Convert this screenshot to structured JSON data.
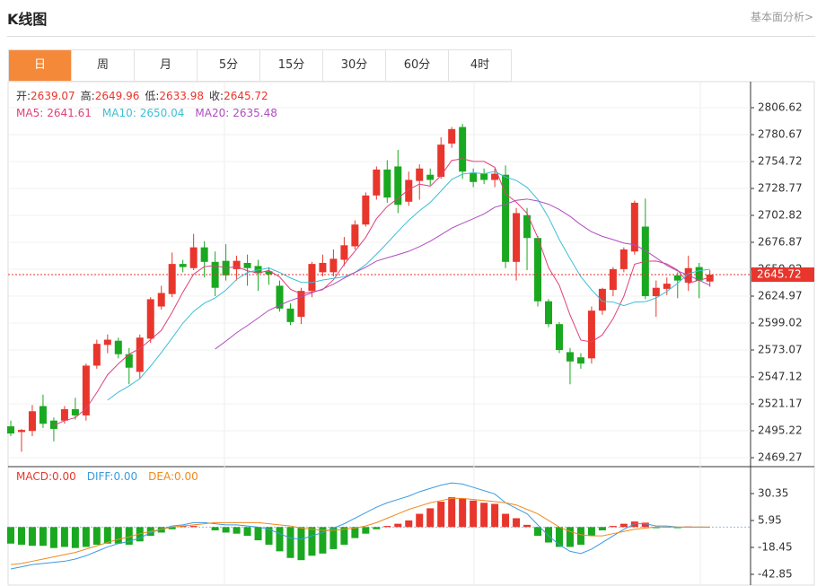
{
  "header": {
    "title": "K线图",
    "link": "基本面分析>"
  },
  "tabs": [
    "日",
    "周",
    "月",
    "5分",
    "15分",
    "30分",
    "60分",
    "4时"
  ],
  "chart_data": [
    {
      "type": "candlestick",
      "ohlc_labels": [
        "开:",
        "高:",
        "低:",
        "收:"
      ],
      "open": [
        2499.5,
        2494,
        2495,
        2519,
        2505,
        2505,
        2516,
        2510,
        2558,
        2578,
        2582,
        2569,
        2552,
        2584,
        2615,
        2627,
        2656,
        2652,
        2672,
        2658,
        2659,
        2651,
        2657,
        2654,
        2649,
        2635,
        2613,
        2605,
        2630,
        2648,
        2648,
        2660,
        2673,
        2694,
        2722,
        2747,
        2750,
        2716,
        2736,
        2742,
        2740,
        2772,
        2788,
        2744,
        2743,
        2737,
        2742,
        2658,
        2703,
        2681,
        2620,
        2598,
        2571,
        2566,
        2565,
        2611,
        2631,
        2651,
        2668,
        2692,
        2625,
        2632,
        2645,
        2638,
        2653,
        2639.07
      ],
      "high": [
        2505,
        2497,
        2520,
        2530,
        2508,
        2519,
        2527,
        2560,
        2583,
        2588,
        2585,
        2575,
        2588,
        2624,
        2635,
        2667,
        2660,
        2685,
        2678,
        2668,
        2675,
        2664,
        2665,
        2660,
        2653,
        2640,
        2618,
        2633,
        2658,
        2665,
        2670,
        2682,
        2698,
        2725,
        2750,
        2756,
        2766,
        2745,
        2752,
        2748,
        2778,
        2788,
        2791,
        2748,
        2748,
        2748,
        2751,
        2710,
        2710,
        2683,
        2622,
        2600,
        2575,
        2570,
        2615,
        2633,
        2653,
        2672,
        2717,
        2719,
        2640,
        2643,
        2648,
        2664,
        2657,
        2649.96
      ],
      "low": [
        2490,
        2475,
        2490,
        2498,
        2485,
        2502,
        2506,
        2505,
        2555,
        2570,
        2565,
        2540,
        2545,
        2580,
        2612,
        2624,
        2648,
        2650,
        2643,
        2625,
        2640,
        2640,
        2635,
        2630,
        2636,
        2610,
        2597,
        2598,
        2624,
        2644,
        2644,
        2654,
        2670,
        2692,
        2718,
        2715,
        2705,
        2712,
        2718,
        2732,
        2738,
        2768,
        2738,
        2730,
        2733,
        2730,
        2652,
        2640,
        2650,
        2615,
        2595,
        2570,
        2540,
        2555,
        2560,
        2607,
        2625,
        2648,
        2665,
        2622,
        2605,
        2626,
        2623,
        2630,
        2623,
        2633.98
      ],
      "close": [
        2492.6,
        2496,
        2514,
        2502,
        2497,
        2516,
        2510,
        2558,
        2579,
        2583,
        2569,
        2556,
        2585,
        2622,
        2628,
        2656,
        2653,
        2672,
        2658,
        2633,
        2645,
        2659,
        2652,
        2647,
        2646,
        2613,
        2600,
        2630,
        2656,
        2657,
        2661,
        2674,
        2694,
        2722,
        2747,
        2720,
        2713,
        2737,
        2748,
        2737,
        2771,
        2786,
        2745,
        2735,
        2737,
        2743,
        2658,
        2705,
        2681,
        2620,
        2598,
        2573,
        2562,
        2560,
        2611,
        2632,
        2651,
        2670,
        2715,
        2625,
        2633,
        2637,
        2640,
        2652,
        2640,
        2645.72
      ],
      "up_color": "#e8362c",
      "down_color": "#1aa820",
      "ma": [
        {
          "name": "MA5:",
          "value": 2641.61,
          "color": "#e0407a"
        },
        {
          "name": "MA10:",
          "value": 2650.04,
          "color": "#3cbfd6"
        },
        {
          "name": "MA20:",
          "value": 2635.48,
          "color": "#b04cc0"
        }
      ],
      "ylim": [
        2462.35,
        2829.98
      ],
      "yticks": [
        2469.27,
        2495.22,
        2521.17,
        2547.12,
        2573.07,
        2599.02,
        2624.97,
        2650.92,
        2676.87,
        2702.82,
        2728.77,
        2754.72,
        2780.67,
        2806.62
      ],
      "grid": true
    },
    {
      "type": "macd",
      "indicators": [
        {
          "name": "MACD:",
          "value": 0,
          "value_label": "0.00",
          "color": "#e8362c"
        },
        {
          "name": "DIFF:",
          "value": 0,
          "value_label": "0.00",
          "color": "#3a9be0"
        },
        {
          "name": "DEA:",
          "value": 0,
          "value_label": "0.00",
          "color": "#f08a1c"
        }
      ],
      "hist": [
        -15,
        -16,
        -17,
        -17,
        -19,
        -18,
        -19,
        -18,
        -16,
        -15,
        -15,
        -16,
        -13,
        -8,
        -5,
        -2,
        1,
        1,
        0,
        -3,
        -5,
        -6,
        -8,
        -12,
        -16,
        -22,
        -28,
        -30,
        -26,
        -24,
        -20,
        -16,
        -10,
        -6,
        -2,
        1,
        3,
        6,
        12,
        17,
        23,
        27,
        26,
        24,
        22,
        21,
        12,
        8,
        2,
        -8,
        -14,
        -18,
        -18,
        -16,
        -8,
        -3,
        1,
        3,
        5,
        4,
        -1,
        -0.5,
        -1,
        0.5,
        0.3,
        0
      ],
      "diff": [
        -38,
        -36,
        -34,
        -33,
        -32,
        -31,
        -29,
        -26,
        -22,
        -18,
        -15,
        -13,
        -10,
        -5,
        -2,
        1,
        2,
        4,
        4,
        3,
        2,
        2,
        1,
        0,
        -2,
        -6,
        -10,
        -11,
        -8,
        -5,
        -1,
        3,
        8,
        13,
        18,
        22,
        25,
        28,
        32,
        35,
        38,
        40,
        39,
        36,
        33,
        30,
        22,
        17,
        12,
        2,
        -8,
        -16,
        -22,
        -24,
        -20,
        -14,
        -8,
        -2,
        3,
        3,
        1,
        1,
        0,
        0,
        0,
        0
      ],
      "dea": [
        -34,
        -33,
        -31,
        -29,
        -27,
        -25,
        -23,
        -20,
        -17,
        -14,
        -11,
        -9,
        -6,
        -4,
        -2,
        0,
        1,
        2,
        3,
        4,
        4,
        4,
        4,
        4,
        3,
        2,
        1,
        -1,
        -2,
        -3,
        -3,
        -2,
        -1,
        1,
        4,
        8,
        12,
        16,
        19,
        22,
        24,
        26,
        26,
        25,
        24,
        23,
        22,
        20,
        16,
        12,
        6,
        0,
        -4,
        -7,
        -8,
        -8,
        -6,
        -4,
        -2,
        -1,
        0,
        0,
        0,
        0,
        0,
        0
      ],
      "ylim": [
        -52.61,
        53.12
      ],
      "yticks": [
        -42.85,
        -18.45,
        5.95,
        30.35
      ]
    }
  ]
}
